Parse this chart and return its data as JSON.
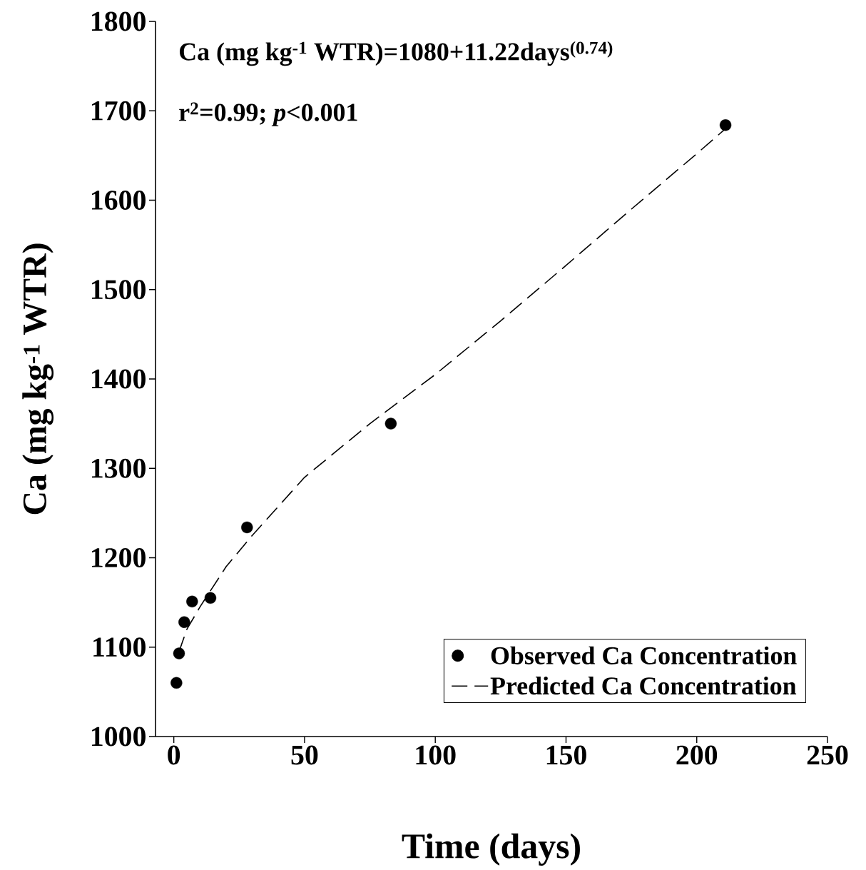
{
  "chart_data": {
    "type": "scatter",
    "xlabel": "Time (days)",
    "ylabel": "Ca (mg kg$^{-1}$ WTR)",
    "annotations": [
      "Ca (mg kg$^{-1}$ WTR)=1080+11.22days$^{(0.74)}$",
      "r$^{2}$=0.99; *p*<0.001"
    ],
    "xlim": [
      -7,
      250
    ],
    "ylim": [
      1000,
      1800
    ],
    "xticks": [
      0,
      50,
      100,
      150,
      200,
      250
    ],
    "yticks": [
      1000,
      1100,
      1200,
      1300,
      1400,
      1500,
      1600,
      1700,
      1800
    ],
    "grid": false,
    "legend": "bottom right",
    "series": [
      {
        "name": "Observed Ca Concentration",
        "color": "#000000",
        "marker": "circle",
        "x": [
          1,
          2,
          4,
          7,
          14,
          28,
          83,
          211
        ],
        "values": [
          1060,
          1093,
          1128,
          1151,
          1155,
          1234,
          1350,
          1684
        ]
      },
      {
        "name": "Predicted Ca Concentration",
        "type": "line",
        "color": "#000000",
        "marker": "none",
        "line_style": "dashed",
        "x": [
          2,
          5,
          10,
          20,
          30,
          50,
          75,
          100,
          125,
          150,
          175,
          200,
          211
        ],
        "values": [
          1095,
          1120,
          1145,
          1190,
          1225,
          1290,
          1350,
          1405,
          1465,
          1527,
          1590,
          1652,
          1680
        ]
      }
    ]
  }
}
